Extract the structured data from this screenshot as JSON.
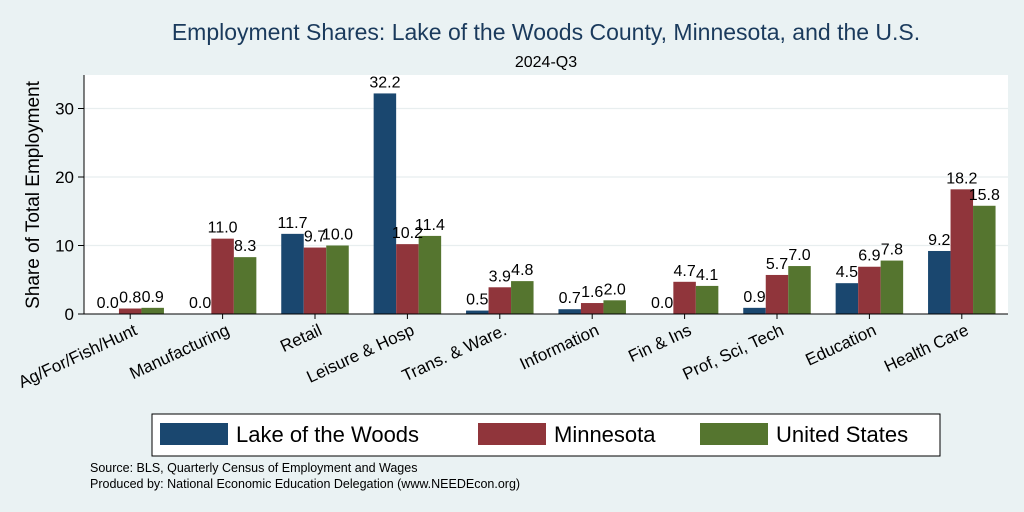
{
  "chart_data": {
    "type": "bar",
    "title": "Employment Shares: Lake of the Woods County, Minnesota, and the U.S.",
    "subtitle": "2024-Q3",
    "xlabel": "",
    "ylabel": "Share of Total Employment",
    "ylim": [
      0,
      35
    ],
    "yticks": [
      0,
      10,
      20,
      30
    ],
    "grid": true,
    "legend_position": "bottom",
    "categories": [
      "Ag/For/Fish/Hunt",
      "Manufacturing",
      "Retail",
      "Leisure & Hosp",
      "Trans. & Ware.",
      "Information",
      "Fin & Ins",
      "Prof, Sci, Tech",
      "Education",
      "Health Care"
    ],
    "series": [
      {
        "name": "Lake of the Woods",
        "color": "#1a476f",
        "values": [
          0.0,
          0.0,
          11.7,
          32.2,
          0.5,
          0.7,
          0.0,
          0.9,
          4.5,
          9.2
        ],
        "labels": [
          "0.0",
          "0.0",
          "11.7",
          "32.2",
          "0.5",
          "0.7",
          "0.0",
          "0.9",
          "4.5",
          "9.2"
        ]
      },
      {
        "name": "Minnesota",
        "color": "#90353b",
        "values": [
          0.8,
          11.0,
          9.7,
          10.2,
          3.9,
          1.6,
          4.7,
          5.7,
          6.9,
          18.2
        ],
        "labels": [
          "0.8",
          "11.0",
          "9.7",
          "10.2",
          "3.9",
          "1.6",
          "4.7",
          "5.7",
          "6.9",
          "18.2"
        ]
      },
      {
        "name": "United States",
        "color": "#55752f",
        "values": [
          0.9,
          8.3,
          10.0,
          11.4,
          4.8,
          2.0,
          4.1,
          7.0,
          7.8,
          15.8
        ],
        "labels": [
          "0.9",
          "8.3",
          "10.0",
          "11.4",
          "4.8",
          "2.0",
          "4.1",
          "7.0",
          "7.8",
          "15.8"
        ]
      }
    ],
    "notes": [
      "Source: BLS, Quarterly Census of Employment and Wages",
      "Produced by: National Economic Education Delegation (www.NEEDEcon.org)"
    ]
  }
}
